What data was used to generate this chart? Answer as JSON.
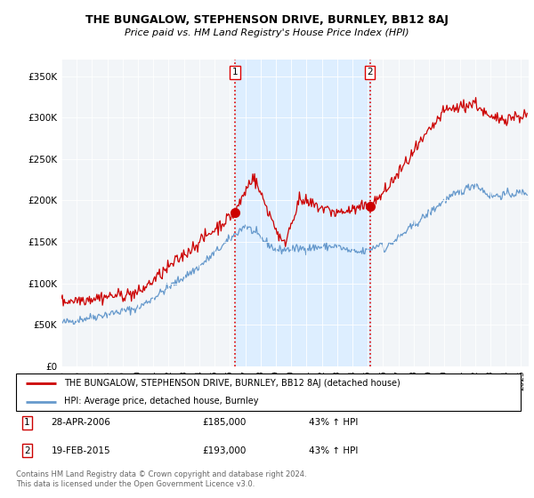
{
  "title": "THE BUNGALOW, STEPHENSON DRIVE, BURNLEY, BB12 8AJ",
  "subtitle": "Price paid vs. HM Land Registry's House Price Index (HPI)",
  "ylabel_ticks": [
    "£0",
    "£50K",
    "£100K",
    "£150K",
    "£200K",
    "£250K",
    "£300K",
    "£350K"
  ],
  "ytick_values": [
    0,
    50000,
    100000,
    150000,
    200000,
    250000,
    300000,
    350000
  ],
  "ylim": [
    0,
    370000
  ],
  "xlim_start": 1995.0,
  "xlim_end": 2025.5,
  "sale1_x": 2006.32,
  "sale1_y": 185000,
  "sale2_x": 2015.13,
  "sale2_y": 193000,
  "property_color": "#cc0000",
  "hpi_color": "#6699cc",
  "shade_color": "#ddeeff",
  "vline_color": "#dd0000",
  "legend_property": "THE BUNGALOW, STEPHENSON DRIVE, BURNLEY, BB12 8AJ (detached house)",
  "legend_hpi": "HPI: Average price, detached house, Burnley",
  "table_rows": [
    [
      "1",
      "28-APR-2006",
      "£185,000",
      "43% ↑ HPI"
    ],
    [
      "2",
      "19-FEB-2015",
      "£193,000",
      "43% ↑ HPI"
    ]
  ],
  "footnote": "Contains HM Land Registry data © Crown copyright and database right 2024.\nThis data is licensed under the Open Government Licence v3.0.",
  "bg_color": "#f2f5f8"
}
